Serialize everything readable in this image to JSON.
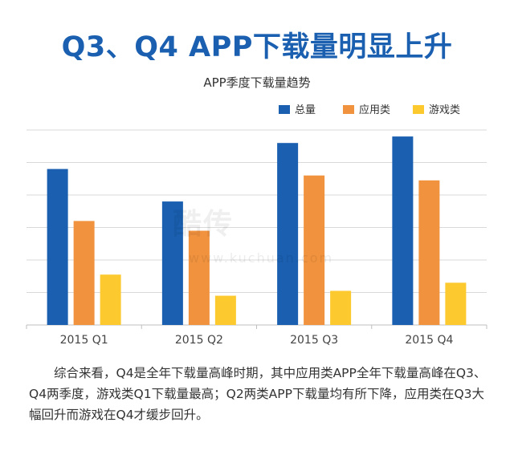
{
  "headline": "Q3、Q4 APP下载量明显上升",
  "watermark": {
    "text": "酷传",
    "url": "www.kuchuan.com"
  },
  "chart_data": {
    "type": "bar",
    "title": "APP季度下载量趋势",
    "categories": [
      "2015 Q1",
      "2015 Q2",
      "2015 Q3",
      "2015 Q4"
    ],
    "series": [
      {
        "name": "总量",
        "color": "#1a5fb0",
        "values": [
          4.8,
          3.8,
          5.6,
          5.8
        ]
      },
      {
        "name": "应用类",
        "color": "#f0923e",
        "values": [
          3.2,
          2.9,
          4.6,
          4.45
        ]
      },
      {
        "name": "游戏类",
        "color": "#fcc92e",
        "values": [
          1.55,
          0.9,
          1.05,
          1.3
        ]
      }
    ],
    "ylim": [
      0,
      6
    ],
    "grid": true,
    "legend": "top-right",
    "xlabel": "",
    "ylabel": ""
  },
  "summary": "综合来看，Q4是全年下载量高峰时期，其中应用类APP全年下载量高峰在Q3、Q4两季度，游戏类Q1下载量最高；Q2两类APP下载量均有所下降，应用类在Q3大幅回升而游戏在Q4才缓步回升。"
}
